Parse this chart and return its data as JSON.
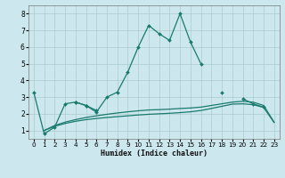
{
  "title": "",
  "xlabel": "Humidex (Indice chaleur)",
  "background_color": "#cce8ee",
  "grid_color": "#aacccc",
  "line_color": "#1a7a6e",
  "xlim": [
    -0.5,
    23.5
  ],
  "ylim": [
    0.5,
    8.5
  ],
  "xticks": [
    0,
    1,
    2,
    3,
    4,
    5,
    6,
    7,
    8,
    9,
    10,
    11,
    12,
    13,
    14,
    15,
    16,
    17,
    18,
    19,
    20,
    21,
    22,
    23
  ],
  "yticks": [
    1,
    2,
    3,
    4,
    5,
    6,
    7,
    8
  ],
  "line1_y": [
    3.3,
    0.8,
    1.2,
    2.6,
    2.7,
    2.5,
    2.1,
    3.0,
    3.3,
    4.5,
    6.0,
    7.3,
    6.8,
    6.4,
    8.0,
    6.3,
    5.0,
    null,
    3.3,
    null,
    2.9,
    2.6,
    2.4,
    null
  ],
  "line2_y": [
    null,
    null,
    null,
    null,
    2.7,
    2.5,
    2.2,
    null,
    null,
    null,
    null,
    null,
    null,
    null,
    null,
    null,
    null,
    null,
    null,
    null,
    null,
    null,
    null,
    null
  ],
  "line3_y": [
    null,
    1.0,
    1.3,
    1.5,
    1.65,
    1.78,
    1.88,
    1.97,
    2.05,
    2.12,
    2.18,
    2.23,
    2.25,
    2.28,
    2.32,
    2.35,
    2.4,
    2.5,
    2.6,
    2.7,
    2.75,
    2.7,
    2.5,
    1.5
  ],
  "line4_y": [
    null,
    1.0,
    1.25,
    1.42,
    1.55,
    1.65,
    1.72,
    1.78,
    1.83,
    1.88,
    1.93,
    1.97,
    2.0,
    2.03,
    2.07,
    2.12,
    2.2,
    2.32,
    2.45,
    2.58,
    2.6,
    2.55,
    2.38,
    1.48
  ]
}
